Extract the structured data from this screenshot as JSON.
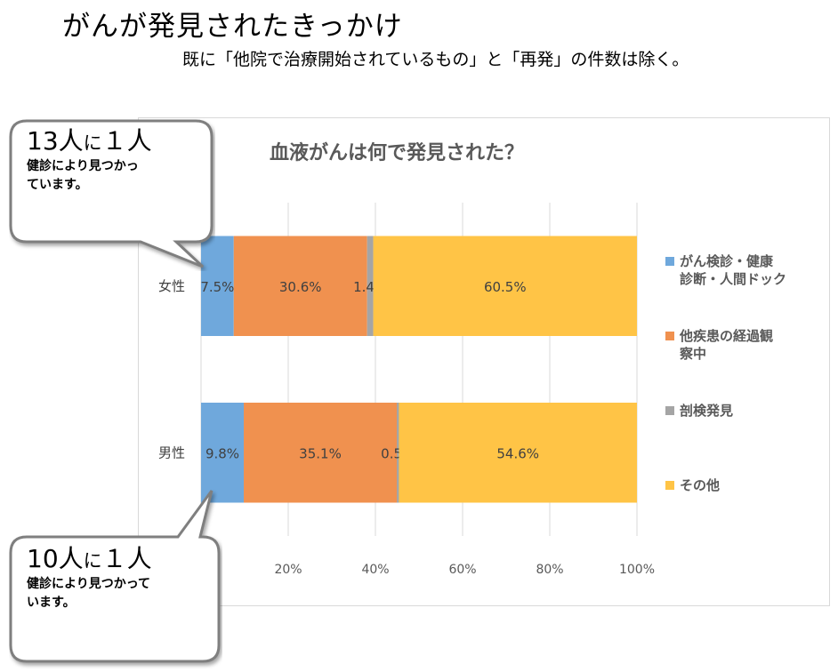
{
  "header": {
    "title": "がんが発見されたきっかけ",
    "note": "既に「他院で治療開始されているもの」と「再発」の件数は除く。"
  },
  "chart_data": {
    "type": "bar",
    "orientation": "horizontal",
    "stacked": true,
    "title": "血液がんは何で発見された？",
    "categories": [
      "女性",
      "男性"
    ],
    "series": [
      {
        "name": "がん検診・健康診断・人間ドック",
        "legend_lines": [
          "がん検診・健康",
          "診断・人間ドック"
        ],
        "color": "#6fa8dc",
        "values": [
          7.5,
          9.8
        ],
        "labels": [
          "7.5%",
          "9.8%"
        ]
      },
      {
        "name": "他疾患の経過観察中",
        "legend_lines": [
          "他疾患の経過観",
          "察中"
        ],
        "color": "#f0914f",
        "values": [
          30.6,
          35.1
        ],
        "labels": [
          "30.6%",
          "35.1%"
        ]
      },
      {
        "name": "剖検発見",
        "legend_lines": [
          "剖検発見"
        ],
        "color": "#a5a5a5",
        "values": [
          1.4,
          0.5
        ],
        "labels": [
          "1.4%",
          "0.5%"
        ]
      },
      {
        "name": "その他",
        "legend_lines": [
          "その他"
        ],
        "color": "#ffc446",
        "values": [
          60.5,
          54.6
        ],
        "labels": [
          "60.5%",
          "54.6%"
        ]
      }
    ],
    "xlim": [
      0,
      100
    ],
    "x_ticks": [
      "",
      "20%",
      "40%",
      "60%",
      "80%",
      "100%"
    ],
    "grid": true,
    "legend_position": "right"
  },
  "callouts": [
    {
      "ratio_num": "13人",
      "ni": "に",
      "ratio_one": "１人",
      "lines": [
        "健診により見つかっ",
        "ています。"
      ]
    },
    {
      "ratio_num": "10人",
      "ni": "に",
      "ratio_one": "１人",
      "lines": [
        "健診により見つかって",
        "います。"
      ]
    }
  ]
}
